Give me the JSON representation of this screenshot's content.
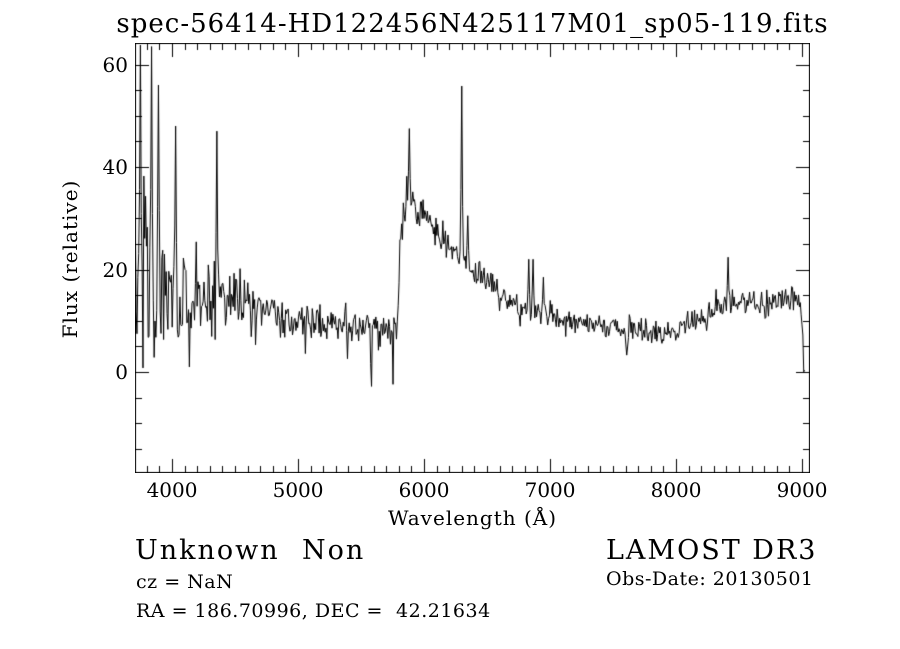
{
  "page": {
    "background": "#ffffff",
    "foreground": "#000000"
  },
  "plot": {
    "title": "spec-56414-HD122456N425117M01_sp05-119.fits",
    "x_label": "Wavelength (Å)",
    "y_label": "Flux (relative)"
  },
  "annotations": {
    "class_label": "Unknown",
    "subclass_label": "Non",
    "survey_label": "LAMOST DR3",
    "cz_line": "cz = NaN",
    "obsdate_line": "Obs-Date: 20130501",
    "radec_line": "RA = 186.70996, DEC =  42.21634"
  },
  "chart_data": {
    "type": "line",
    "title": "spec-56414-HD122456N425117M01_sp05-119.fits",
    "xlabel": "Wavelength (Å)",
    "ylabel": "Flux (relative)",
    "xlim": [
      3706,
      9063
    ],
    "ylim": [
      -19.7,
      64.2
    ],
    "x_major_ticks": [
      4000,
      5000,
      6000,
      7000,
      8000,
      9000
    ],
    "x_tick_labels": [
      "4000",
      "5000",
      "6000",
      "7000",
      "8000",
      "9000"
    ],
    "x_minor_step": 100,
    "y_major_ticks": [
      0,
      20,
      40,
      60
    ],
    "y_tick_labels": [
      "0",
      "20",
      "40",
      "60"
    ],
    "y_minor_step": 5,
    "grid": false,
    "legend": "none",
    "line_color": "#000000",
    "background_color": "#ffffff",
    "series_name": "flux (relative)",
    "x_start": 3708,
    "x_end": 9020,
    "samples": 780,
    "noise_seed": 56414,
    "clip": [
      -16.8,
      64.0
    ],
    "continuum": [
      [
        3708,
        16
      ],
      [
        3760,
        17
      ],
      [
        3850,
        17
      ],
      [
        3950,
        16
      ],
      [
        4100,
        15
      ],
      [
        4250,
        14.5
      ],
      [
        4400,
        14
      ],
      [
        4550,
        13
      ],
      [
        4700,
        11.8
      ],
      [
        4900,
        10.8
      ],
      [
        5100,
        10
      ],
      [
        5350,
        9.3
      ],
      [
        5600,
        8.6
      ],
      [
        5790,
        8.2
      ],
      [
        5808,
        24
      ],
      [
        5835,
        31
      ],
      [
        5865,
        34
      ],
      [
        5910,
        33
      ],
      [
        5970,
        31.5
      ],
      [
        6030,
        30
      ],
      [
        6100,
        26.5
      ],
      [
        6200,
        24
      ],
      [
        6290,
        22.5
      ],
      [
        6360,
        20.5
      ],
      [
        6440,
        19
      ],
      [
        6520,
        17
      ],
      [
        6620,
        14.8
      ],
      [
        6700,
        12.8
      ],
      [
        6800,
        12.2
      ],
      [
        6870,
        12
      ],
      [
        6960,
        11
      ],
      [
        7100,
        10
      ],
      [
        7300,
        9.2
      ],
      [
        7450,
        9
      ],
      [
        7560,
        8.5
      ],
      [
        7620,
        8
      ],
      [
        7700,
        8.8
      ],
      [
        7800,
        8
      ],
      [
        7900,
        7.4
      ],
      [
        8000,
        8
      ],
      [
        8100,
        9.5
      ],
      [
        8200,
        11
      ],
      [
        8320,
        12.5
      ],
      [
        8420,
        13.3
      ],
      [
        8520,
        12.8
      ],
      [
        8620,
        13.3
      ],
      [
        8720,
        13.8
      ],
      [
        8820,
        14.3
      ],
      [
        8920,
        14.8
      ],
      [
        8985,
        14
      ],
      [
        9000,
        10
      ],
      [
        9012,
        2
      ],
      [
        9020,
        0.4
      ]
    ],
    "noise_sigma": [
      [
        3708,
        26
      ],
      [
        3760,
        21
      ],
      [
        3850,
        14
      ],
      [
        3950,
        9
      ],
      [
        4100,
        7
      ],
      [
        4300,
        6
      ],
      [
        4500,
        5
      ],
      [
        4700,
        4
      ],
      [
        4900,
        3.3
      ],
      [
        5200,
        2.8
      ],
      [
        5600,
        2.5
      ],
      [
        5800,
        2.8
      ],
      [
        6000,
        2.6
      ],
      [
        6300,
        2.3
      ],
      [
        6600,
        2.2
      ],
      [
        6900,
        2
      ],
      [
        7200,
        1.8
      ],
      [
        7600,
        1.7
      ],
      [
        8000,
        1.8
      ],
      [
        8300,
        2
      ],
      [
        8700,
        2.1
      ],
      [
        9000,
        2.2
      ]
    ],
    "spikes": [
      {
        "x": 3752,
        "v": 63.8
      },
      {
        "x": 3835,
        "v": 63.5
      },
      {
        "x": 3890,
        "v": 56
      },
      {
        "x": 4026,
        "v": 48
      },
      {
        "x": 4357,
        "v": 47
      },
      {
        "x": 5881,
        "v": 47.5
      },
      {
        "x": 6302,
        "v": 55.8
      },
      {
        "x": 6350,
        "v": 30.5
      },
      {
        "x": 6830,
        "v": 22
      },
      {
        "x": 6866,
        "v": 22
      },
      {
        "x": 6944,
        "v": 18.5
      },
      {
        "x": 8413,
        "v": 22.4
      }
    ],
    "dips": [
      {
        "x": 4140,
        "v": 1,
        "w": 6
      },
      {
        "x": 5060,
        "v": 3.6,
        "w": 6
      },
      {
        "x": 5390,
        "v": 2.6,
        "w": 6
      },
      {
        "x": 5580,
        "v": -2.8,
        "w": 7
      },
      {
        "x": 5752,
        "v": -2.4,
        "w": 7
      },
      {
        "x": 7610,
        "v": 3.3,
        "w": 16
      },
      {
        "x": 7890,
        "v": 5.6,
        "w": 22
      }
    ],
    "frame": {
      "tick_direction": "in",
      "major_tick_len": 13,
      "minor_tick_len": 6
    }
  }
}
